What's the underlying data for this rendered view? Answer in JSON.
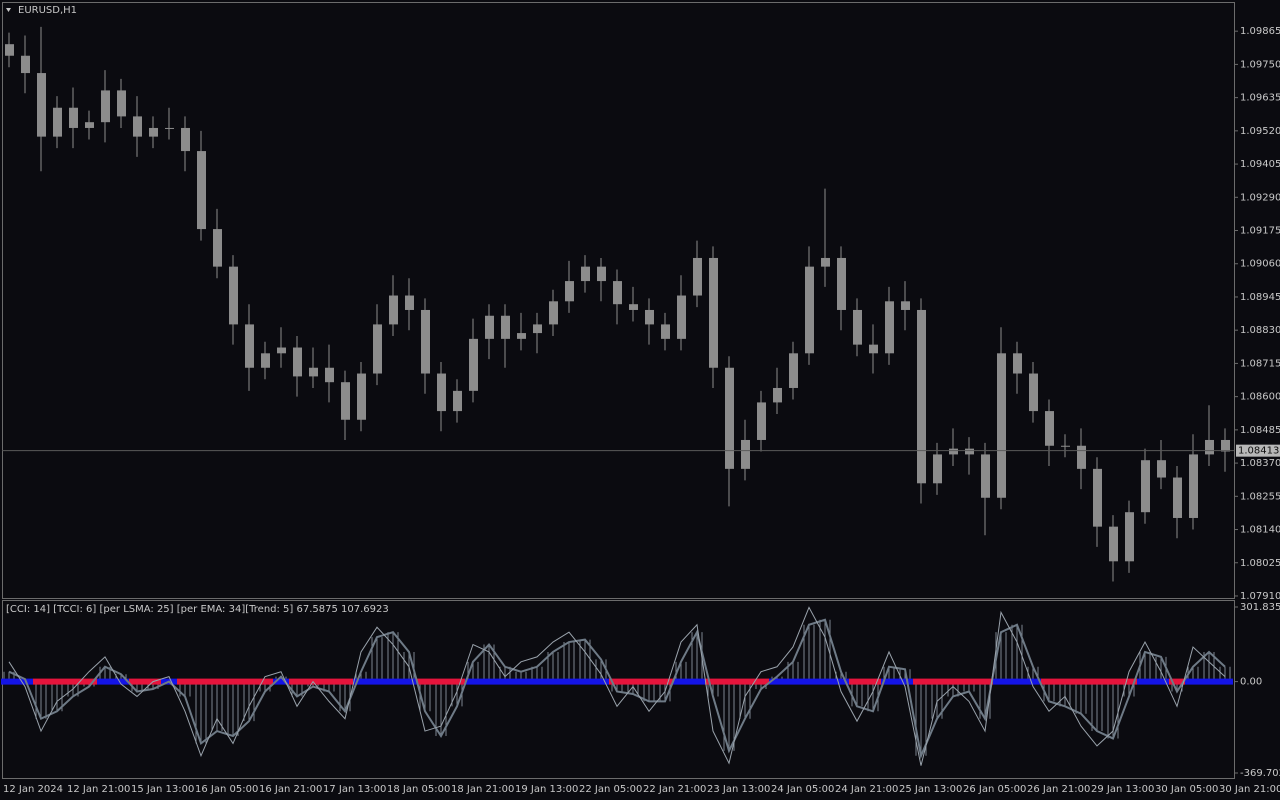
{
  "chart_data": [
    {
      "type": "candlestick",
      "title": "EURUSD,H1",
      "color": "#8c8c8c",
      "ylim": [
        1.07903,
        1.09966
      ],
      "yticks": [
        1.09865,
        {
          "value": 1.0975,
          "label": "1.09750"
        },
        1.09635,
        {
          "value": 1.0952,
          "label": "1.09520"
        },
        1.09405,
        {
          "value": 1.0929,
          "label": "1.09290"
        },
        1.09175,
        {
          "value": 1.0906,
          "label": "1.09060"
        },
        1.08945,
        {
          "value": 1.0883,
          "label": "1.08830"
        },
        1.08715,
        {
          "value": 1.086,
          "label": "1.08600"
        },
        1.08485,
        {
          "value": 1.0837,
          "label": "1.08370"
        },
        1.08255,
        {
          "value": 1.0814,
          "label": "1.08140"
        },
        1.08025,
        {
          "value": 1.0791,
          "label": "1.07910"
        }
      ],
      "current_price": 1.08413,
      "xlabels": [
        "12 Jan 2024",
        "12 Jan 21:00",
        "15 Jan 13:00",
        "16 Jan 05:00",
        "16 Jan 21:00",
        "17 Jan 13:00",
        "18 Jan 05:00",
        "18 Jan 21:00",
        "19 Jan 13:00",
        "22 Jan 05:00",
        "22 Jan 21:00",
        "23 Jan 13:00",
        "24 Jan 05:00",
        "24 Jan 21:00",
        "25 Jan 13:00",
        "26 Jan 05:00",
        "26 Jan 21:00",
        "29 Jan 13:00",
        "30 Jan 05:00",
        "30 Jan 21:00"
      ],
      "ohlc": [
        [
          1.0982,
          1.0986,
          1.0974,
          1.0978
        ],
        [
          1.0978,
          1.0985,
          1.0965,
          1.0972
        ],
        [
          1.0972,
          1.0988,
          1.0938,
          1.095
        ],
        [
          1.095,
          1.0964,
          1.0946,
          1.096
        ],
        [
          1.096,
          1.0967,
          1.0946,
          1.0953
        ],
        [
          1.0953,
          1.0959,
          1.0949,
          1.0955
        ],
        [
          1.0955,
          1.0973,
          1.0948,
          1.0966
        ],
        [
          1.0966,
          1.097,
          1.0953,
          1.0957
        ],
        [
          1.0957,
          1.0964,
          1.0943,
          1.095
        ],
        [
          1.095,
          1.0957,
          1.0946,
          1.0953
        ],
        [
          1.0953,
          1.096,
          1.0949,
          1.0953
        ],
        [
          1.0953,
          1.0957,
          1.0938,
          1.0945
        ],
        [
          1.0945,
          1.0952,
          1.0914,
          1.0918
        ],
        [
          1.0918,
          1.0925,
          1.0901,
          1.0905
        ],
        [
          1.0905,
          1.0909,
          1.0878,
          1.0885
        ],
        [
          1.0885,
          1.0892,
          1.0862,
          1.087
        ],
        [
          1.087,
          1.0879,
          1.0866,
          1.0875
        ],
        [
          1.0875,
          1.0884,
          1.087,
          1.0877
        ],
        [
          1.0877,
          1.0881,
          1.086,
          1.0867
        ],
        [
          1.0867,
          1.0877,
          1.0863,
          1.087
        ],
        [
          1.087,
          1.0878,
          1.0858,
          1.0865
        ],
        [
          1.0865,
          1.0869,
          1.0845,
          1.0852
        ],
        [
          1.0852,
          1.0872,
          1.0848,
          1.0868
        ],
        [
          1.0868,
          1.0892,
          1.0864,
          1.0885
        ],
        [
          1.0885,
          1.0902,
          1.0881,
          1.0895
        ],
        [
          1.0895,
          1.0901,
          1.0883,
          1.089
        ],
        [
          1.089,
          1.0894,
          1.0861,
          1.0868
        ],
        [
          1.0868,
          1.0872,
          1.0848,
          1.0855
        ],
        [
          1.0855,
          1.0866,
          1.0851,
          1.0862
        ],
        [
          1.0862,
          1.0887,
          1.0858,
          1.088
        ],
        [
          1.088,
          1.0892,
          1.0873,
          1.0888
        ],
        [
          1.0888,
          1.0892,
          1.087,
          1.088
        ],
        [
          1.088,
          1.0889,
          1.0876,
          1.0882
        ],
        [
          1.0882,
          1.0889,
          1.0875,
          1.0885
        ],
        [
          1.0885,
          1.0897,
          1.0881,
          1.0893
        ],
        [
          1.0893,
          1.0907,
          1.0889,
          1.09
        ],
        [
          1.09,
          1.0909,
          1.0896,
          1.0905
        ],
        [
          1.0905,
          1.0908,
          1.0893,
          1.09
        ],
        [
          1.09,
          1.0904,
          1.0885,
          1.0892
        ],
        [
          1.0892,
          1.0898,
          1.0886,
          1.089
        ],
        [
          1.089,
          1.0894,
          1.0878,
          1.0885
        ],
        [
          1.0885,
          1.0889,
          1.0876,
          1.088
        ],
        [
          1.088,
          1.0902,
          1.0876,
          1.0895
        ],
        [
          1.0895,
          1.0914,
          1.0891,
          1.0908
        ],
        [
          1.0908,
          1.0912,
          1.0863,
          1.087
        ],
        [
          1.087,
          1.0874,
          1.0822,
          1.0835
        ],
        [
          1.0835,
          1.0852,
          1.0831,
          1.0845
        ],
        [
          1.0845,
          1.0862,
          1.0841,
          1.0858
        ],
        [
          1.0858,
          1.087,
          1.0854,
          1.0863
        ],
        [
          1.0863,
          1.0879,
          1.0859,
          1.0875
        ],
        [
          1.0875,
          1.0912,
          1.0871,
          1.0905
        ],
        [
          1.0905,
          1.0932,
          1.0898,
          1.0908
        ],
        [
          1.0908,
          1.0912,
          1.0883,
          1.089
        ],
        [
          1.089,
          1.0894,
          1.0874,
          1.0878
        ],
        [
          1.0878,
          1.0885,
          1.0868,
          1.0875
        ],
        [
          1.0875,
          1.0898,
          1.0871,
          1.0893
        ],
        [
          1.0893,
          1.09,
          1.0883,
          1.089
        ],
        [
          1.089,
          1.0894,
          1.0823,
          1.083
        ],
        [
          1.083,
          1.0844,
          1.0826,
          1.084
        ],
        [
          1.084,
          1.0849,
          1.0836,
          1.0842
        ],
        [
          1.0842,
          1.0846,
          1.0833,
          1.084
        ],
        [
          1.084,
          1.0844,
          1.0812,
          1.0825
        ],
        [
          1.0825,
          1.0884,
          1.0821,
          1.0875
        ],
        [
          1.0875,
          1.0879,
          1.0861,
          1.0868
        ],
        [
          1.0868,
          1.0872,
          1.0851,
          1.0855
        ],
        [
          1.0855,
          1.0859,
          1.0836,
          1.0843
        ],
        [
          1.0843,
          1.0847,
          1.0839,
          1.0843
        ],
        [
          1.0843,
          1.0849,
          1.0828,
          1.0835
        ],
        [
          1.0835,
          1.0839,
          1.0808,
          1.0815
        ],
        [
          1.0815,
          1.0819,
          1.0796,
          1.0803
        ],
        [
          1.0803,
          1.0824,
          1.0799,
          1.082
        ],
        [
          1.082,
          1.0842,
          1.0816,
          1.0838
        ],
        [
          1.0838,
          1.0845,
          1.0828,
          1.0832
        ],
        [
          1.0832,
          1.0836,
          1.0811,
          1.0818
        ],
        [
          1.0818,
          1.0847,
          1.0814,
          1.084
        ],
        [
          1.084,
          1.0857,
          1.0836,
          1.0845
        ],
        [
          1.0845,
          1.0849,
          1.0834,
          1.0841
        ]
      ]
    },
    {
      "type": "indicator",
      "title": "[CCI: 14] [TCCI: 6] [per LSMA: 25] [per EMA: 34][Trend: 5]  67.5875 107.6923",
      "ylim": [
        -389.9,
        330.1
      ],
      "yticks": [
        301.8352,
        {
          "value": 0,
          "label": "0.00"
        },
        -369.7028
      ],
      "series": [
        {
          "color": "#6e7a86",
          "width": 2,
          "histogram": true,
          "values": [
            40,
            10,
            -150,
            -120,
            -60,
            -20,
            60,
            30,
            -40,
            -30,
            0,
            -60,
            -250,
            -200,
            -220,
            -160,
            -40,
            20,
            -60,
            -20,
            -40,
            -120,
            40,
            180,
            200,
            120,
            -120,
            -220,
            -100,
            80,
            150,
            60,
            40,
            60,
            120,
            160,
            170,
            90,
            -40,
            -50,
            -80,
            -80,
            80,
            200,
            -60,
            -280,
            -150,
            -30,
            20,
            80,
            230,
            250,
            40,
            -100,
            -120,
            60,
            50,
            -300,
            -150,
            -60,
            -40,
            -150,
            200,
            230,
            60,
            -80,
            -100,
            -130,
            -200,
            -230,
            -60,
            120,
            100,
            -40,
            60,
            120,
            60
          ]
        },
        {
          "color": "#9aa3ac",
          "width": 1,
          "values": [
            80,
            -20,
            -200,
            -80,
            -30,
            40,
            100,
            -10,
            -60,
            0,
            20,
            -120,
            -300,
            -150,
            -250,
            -100,
            20,
            40,
            -100,
            0,
            -80,
            -150,
            120,
            220,
            150,
            60,
            -200,
            -180,
            -40,
            150,
            120,
            20,
            80,
            100,
            160,
            200,
            120,
            30,
            -100,
            -20,
            -120,
            -40,
            160,
            230,
            -200,
            -330,
            -60,
            40,
            60,
            140,
            300,
            180,
            -40,
            -160,
            -40,
            120,
            -20,
            -340,
            -80,
            -20,
            -80,
            -200,
            280,
            160,
            -20,
            -120,
            -60,
            -180,
            -260,
            -200,
            40,
            160,
            40,
            -100,
            140,
            80,
            20
          ]
        }
      ],
      "trend": {
        "up_color": "#1414e6",
        "down_color": "#e6143c",
        "values": [
          1,
          1,
          -1,
          -1,
          -1,
          -1,
          1,
          1,
          -1,
          -1,
          1,
          -1,
          -1,
          -1,
          -1,
          -1,
          -1,
          1,
          -1,
          -1,
          -1,
          -1,
          1,
          1,
          1,
          1,
          -1,
          -1,
          -1,
          1,
          1,
          1,
          1,
          1,
          1,
          1,
          1,
          1,
          -1,
          -1,
          -1,
          -1,
          1,
          1,
          -1,
          -1,
          -1,
          -1,
          1,
          1,
          1,
          1,
          1,
          -1,
          -1,
          1,
          1,
          -1,
          -1,
          -1,
          -1,
          -1,
          1,
          1,
          1,
          -1,
          -1,
          -1,
          -1,
          -1,
          -1,
          1,
          1,
          -1,
          1,
          1,
          1
        ]
      }
    }
  ]
}
